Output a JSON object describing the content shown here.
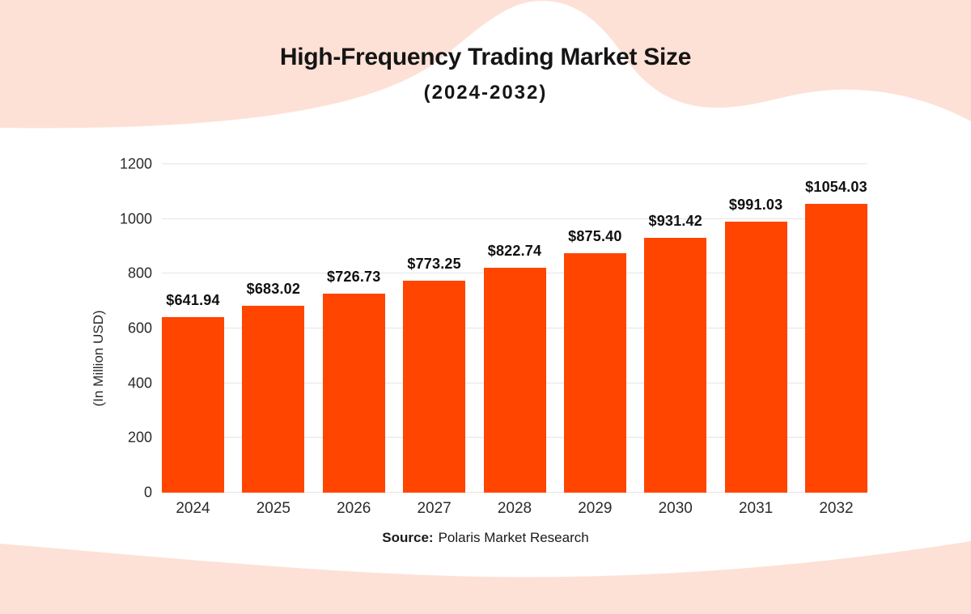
{
  "header": {
    "title": "High-Frequency Trading Market Size",
    "subtitle": "(2024-2032)"
  },
  "footer": {
    "source_label": "Source:",
    "source_text": "Polaris Market Research"
  },
  "decor": {
    "wave_color": "#FDE1D6"
  },
  "chart_data": {
    "type": "bar",
    "title": "High-Frequency Trading Market Size",
    "subtitle": "(2024-2032)",
    "categories": [
      "2024",
      "2025",
      "2026",
      "2027",
      "2028",
      "2029",
      "2030",
      "2031",
      "2032"
    ],
    "values": [
      641.94,
      683.02,
      726.73,
      773.25,
      822.74,
      875.4,
      931.42,
      991.03,
      1054.03
    ],
    "value_labels": [
      "$641.94",
      "$683.02",
      "$726.73",
      "$773.25",
      "$822.74",
      "$875.40",
      "$931.42",
      "$991.03",
      "$1054.03"
    ],
    "xlabel": "",
    "ylabel": "(In Million USD)",
    "ylim": [
      0,
      1200
    ],
    "yticks": [
      0,
      200,
      400,
      600,
      800,
      1000,
      1200
    ],
    "grid": true,
    "legend": "none",
    "bar_color": "#FF4500",
    "gridline_color": "#E5E5E5",
    "label_color": "#101010"
  }
}
